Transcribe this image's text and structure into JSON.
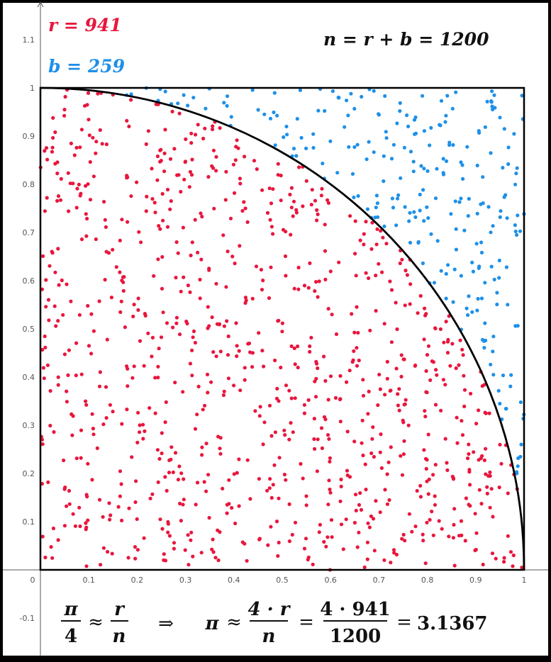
{
  "labels": {
    "r_text": "r = 941",
    "b_text": "b = 259",
    "n_text": "n = r + b = 1200"
  },
  "formula": {
    "pi_sym": "π",
    "four": "4",
    "approx": "≈",
    "r_sym": "r",
    "n_sym": "n",
    "implies": "⇒",
    "pi_sym2": "π",
    "approx2": "≈",
    "num1": "4 · r",
    "den1": "n",
    "eq1": "=",
    "num2": "4 · 941",
    "den2": "1200",
    "eq2": "=",
    "result": "3.1367"
  },
  "chart_data": {
    "type": "scatter",
    "title": "",
    "xlabel": "",
    "ylabel": "",
    "xlim": [
      0,
      1
    ],
    "ylim": [
      -0.1,
      1.1
    ],
    "x_ticks": [
      "0",
      "0.1",
      "0.2",
      "0.3",
      "0.4",
      "0.5",
      "0.6",
      "0.7",
      "0.8",
      "0.9",
      "1"
    ],
    "y_ticks": [
      "-0.1",
      "0.1",
      "0.2",
      "0.3",
      "0.4",
      "0.5",
      "0.6",
      "0.7",
      "0.8",
      "0.9",
      "1",
      "1.1"
    ],
    "grid": false,
    "boundary": "quarter circle x^2 + y^2 = 1 inside unit square",
    "series": [
      {
        "name": "r",
        "count": 941,
        "color": "#e8173d"
      },
      {
        "name": "b",
        "count": 259,
        "color": "#1e90e8"
      }
    ],
    "sampling": {
      "n": 1200,
      "seed": 20240511
    },
    "r_count": 941,
    "b_count": 259,
    "n_total": 1200,
    "pi_estimate": 3.1367
  },
  "colors": {
    "red": "#e8173d",
    "blue": "#1e90e8",
    "axis": "#555555",
    "frame": "#000000",
    "background": "#ffffff"
  }
}
